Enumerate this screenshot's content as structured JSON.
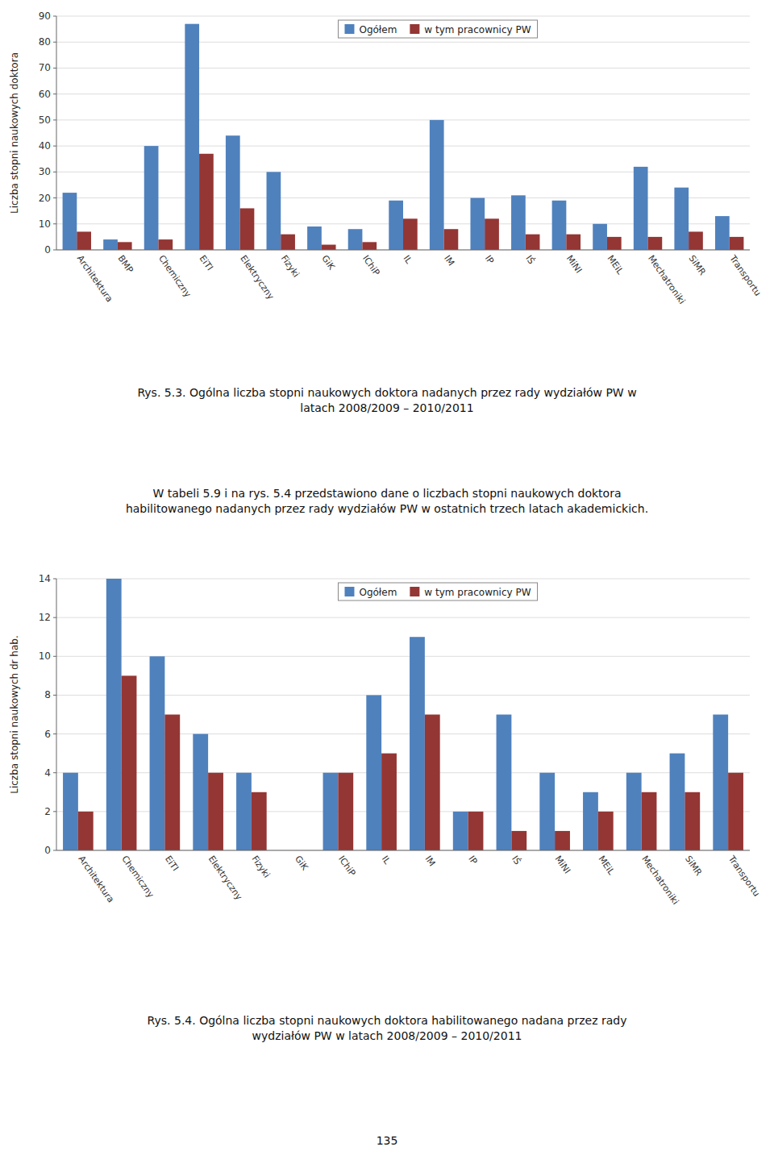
{
  "chart_data": [
    {
      "type": "bar",
      "ylabel": "Liczba stopni naukowych doktora",
      "categories": [
        "Architektura",
        "BMP",
        "Chemiczny",
        "EiTI",
        "Elektryczny",
        "Fizyki",
        "GiK",
        "IChiP",
        "IL",
        "IM",
        "IP",
        "IŚ",
        "MiNI",
        "MEiL",
        "Mechatroniki",
        "SiMR",
        "Transportu"
      ],
      "series": [
        {
          "name": "Ogółem",
          "color": "#4F81BD",
          "values": [
            22,
            4,
            40,
            87,
            44,
            30,
            9,
            8,
            19,
            50,
            20,
            21,
            19,
            10,
            32,
            24,
            13
          ]
        },
        {
          "name": "w tym pracownicy PW",
          "color": "#943634",
          "values": [
            7,
            3,
            4,
            37,
            16,
            6,
            2,
            3,
            12,
            8,
            12,
            6,
            6,
            5,
            5,
            7,
            5
          ]
        }
      ],
      "ylim": [
        0,
        90
      ],
      "yticks": [
        0,
        10,
        20,
        30,
        40,
        50,
        60,
        70,
        80,
        90
      ],
      "grid": true,
      "legend": "top",
      "annotations": [
        "Rys. 5.3. Ogólna liczba stopni naukowych doktora nadanych przez rady wydziałów PW w",
        "latach 2008/2009 – 2010/2011",
        "W tabeli 5.9 i na rys. 5.4 przedstawiono dane o liczbach stopni naukowych doktora",
        "habilitowanego nadanych przez rady wydziałów PW w ostatnich trzech latach akademickich."
      ]
    },
    {
      "type": "bar",
      "ylabel": "Liczba stopni naukowych dr hab.",
      "categories": [
        "Architektura",
        "Chemiczny",
        "EiTI",
        "Elektryczny",
        "Fizyki",
        "GiK",
        "IChiP",
        "IL",
        "IM",
        "IP",
        "IŚ",
        "MiNI",
        "MEiL",
        "Mechatroniki",
        "SiMR",
        "Transportu"
      ],
      "series": [
        {
          "name": "Ogółem",
          "color": "#4F81BD",
          "values": [
            4,
            14,
            10,
            6,
            4,
            0,
            4,
            8,
            11,
            2,
            7,
            4,
            3,
            4,
            5,
            7
          ]
        },
        {
          "name": "w tym pracownicy PW",
          "color": "#943634",
          "values": [
            2,
            9,
            7,
            4,
            3,
            0,
            4,
            5,
            7,
            2,
            1,
            1,
            2,
            3,
            3,
            4
          ]
        }
      ],
      "ylim": [
        0,
        14
      ],
      "yticks": [
        0,
        2,
        4,
        6,
        8,
        10,
        12,
        14
      ],
      "grid": true,
      "legend": "top",
      "annotations": [
        "Rys. 5.4. Ogólna liczba stopni naukowych doktora habilitowanego nadana przez rady",
        "wydziałów PW w latach 2008/2009 – 2010/2011",
        "135"
      ]
    }
  ]
}
